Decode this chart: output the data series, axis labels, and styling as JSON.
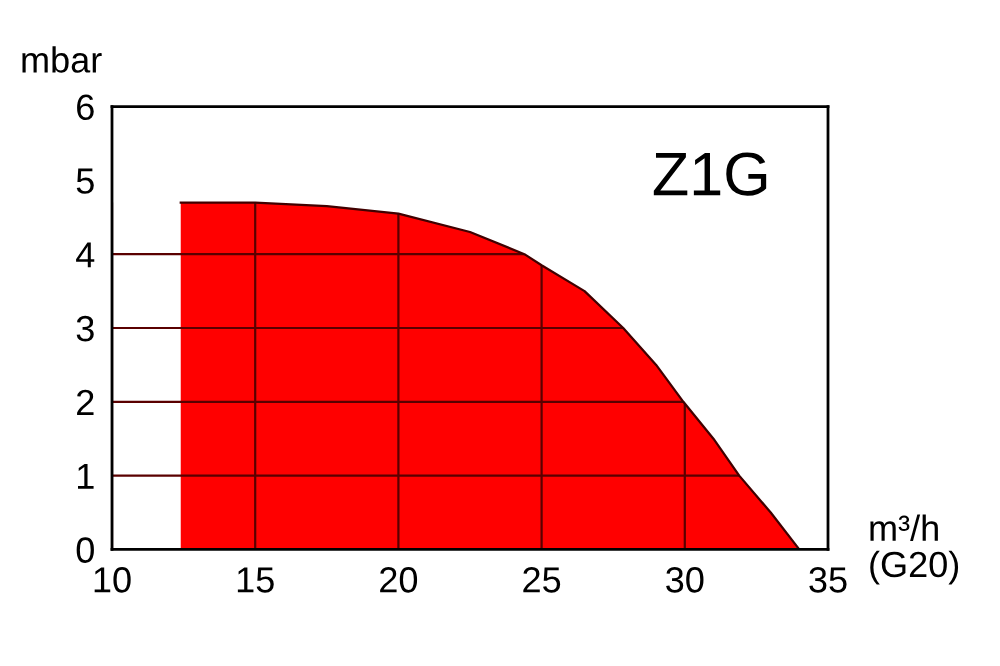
{
  "chart_data": {
    "type": "area",
    "ylabel": "mbar",
    "xlabel": "m³/h\n(G20)",
    "annotations": [
      "Z1G"
    ],
    "x": [
      12.4,
      15,
      17.5,
      20,
      22.5,
      24.4,
      25,
      26.5,
      27.85,
      29,
      29.95,
      31,
      31.9,
      33,
      34
    ],
    "series": [
      {
        "color": "#ff0000",
        "values": [
          4.7,
          4.7,
          4.65,
          4.55,
          4.3,
          4.0,
          3.85,
          3.5,
          3.0,
          2.5,
          2.0,
          1.5,
          1.0,
          0.5,
          0
        ]
      }
    ],
    "xlim": [
      10,
      35
    ],
    "xticks": [
      10,
      15,
      20,
      25,
      30,
      35
    ],
    "ylim": [
      0,
      6
    ],
    "yticks": [
      0,
      1,
      2,
      3,
      4,
      5,
      6
    ],
    "grid": true,
    "legend": false
  }
}
